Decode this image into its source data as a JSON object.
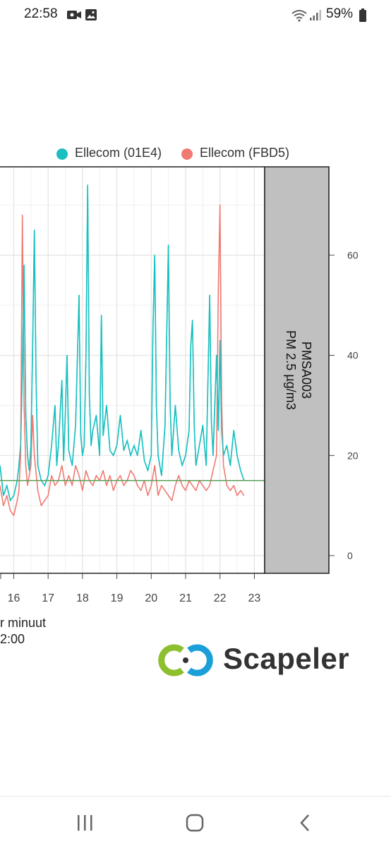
{
  "status_bar": {
    "time": "22:58",
    "battery_percent": "59%",
    "icons": [
      "screen-record-icon",
      "image-icon",
      "wifi-icon",
      "signal-icon",
      "battery-icon"
    ]
  },
  "chart_data": {
    "type": "line",
    "title": "",
    "facet_label": [
      "PMSA003",
      "PM 2.5 µg/m3"
    ],
    "xlabel": [
      "r minuut",
      "2:00"
    ],
    "ylabel": "",
    "x_tick_labels": [
      "16",
      "17",
      "18",
      "19",
      "20",
      "21",
      "22",
      "23"
    ],
    "y_tick_labels": [
      "0",
      "20",
      "40",
      "60"
    ],
    "ylim": [
      0,
      75
    ],
    "xlim": [
      15.6,
      23.3
    ],
    "grid": true,
    "legend_position": "top",
    "reference_line": {
      "value": 15,
      "color": "#5aa05a"
    },
    "colors": {
      "ellecom_01e4": "#19bfc0",
      "ellecom_fbd5": "#f07a72"
    },
    "series": [
      {
        "name": "Ellecom (01E4)",
        "color": "#19bfc0",
        "points": [
          [
            15.6,
            18
          ],
          [
            15.7,
            12
          ],
          [
            15.8,
            14
          ],
          [
            15.9,
            11
          ],
          [
            16.0,
            12
          ],
          [
            16.1,
            15
          ],
          [
            16.15,
            18
          ],
          [
            16.2,
            22
          ],
          [
            16.25,
            37
          ],
          [
            16.3,
            58
          ],
          [
            16.35,
            28
          ],
          [
            16.4,
            20
          ],
          [
            16.45,
            17
          ],
          [
            16.5,
            22
          ],
          [
            16.55,
            42
          ],
          [
            16.6,
            65
          ],
          [
            16.65,
            35
          ],
          [
            16.7,
            18
          ],
          [
            16.8,
            15
          ],
          [
            16.9,
            14
          ],
          [
            17.0,
            16
          ],
          [
            17.1,
            22
          ],
          [
            17.2,
            30
          ],
          [
            17.25,
            18
          ],
          [
            17.3,
            22
          ],
          [
            17.4,
            35
          ],
          [
            17.45,
            19
          ],
          [
            17.5,
            28
          ],
          [
            17.55,
            40
          ],
          [
            17.6,
            21
          ],
          [
            17.7,
            18
          ],
          [
            17.8,
            26
          ],
          [
            17.9,
            52
          ],
          [
            17.95,
            24
          ],
          [
            18.0,
            20
          ],
          [
            18.05,
            22
          ],
          [
            18.1,
            40
          ],
          [
            18.15,
            74
          ],
          [
            18.2,
            32
          ],
          [
            18.25,
            22
          ],
          [
            18.3,
            25
          ],
          [
            18.4,
            28
          ],
          [
            18.5,
            20
          ],
          [
            18.55,
            48
          ],
          [
            18.6,
            24
          ],
          [
            18.7,
            30
          ],
          [
            18.8,
            21
          ],
          [
            18.9,
            20
          ],
          [
            19.0,
            22
          ],
          [
            19.1,
            28
          ],
          [
            19.2,
            21
          ],
          [
            19.3,
            23
          ],
          [
            19.4,
            20
          ],
          [
            19.5,
            22
          ],
          [
            19.6,
            20
          ],
          [
            19.7,
            25
          ],
          [
            19.8,
            19
          ],
          [
            19.9,
            17
          ],
          [
            20.0,
            20
          ],
          [
            20.05,
            45
          ],
          [
            20.1,
            60
          ],
          [
            20.15,
            30
          ],
          [
            20.2,
            20
          ],
          [
            20.3,
            16
          ],
          [
            20.4,
            26
          ],
          [
            20.5,
            62
          ],
          [
            20.55,
            30
          ],
          [
            20.6,
            20
          ],
          [
            20.7,
            30
          ],
          [
            20.8,
            21
          ],
          [
            20.9,
            18
          ],
          [
            21.0,
            20
          ],
          [
            21.1,
            25
          ],
          [
            21.15,
            42
          ],
          [
            21.2,
            47
          ],
          [
            21.25,
            26
          ],
          [
            21.3,
            18
          ],
          [
            21.4,
            22
          ],
          [
            21.5,
            26
          ],
          [
            21.6,
            18
          ],
          [
            21.7,
            52
          ],
          [
            21.75,
            27
          ],
          [
            21.8,
            20
          ],
          [
            21.9,
            40
          ],
          [
            21.95,
            25
          ],
          [
            22.0,
            43
          ],
          [
            22.05,
            25
          ],
          [
            22.1,
            20
          ],
          [
            22.2,
            22
          ],
          [
            22.3,
            18
          ],
          [
            22.4,
            25
          ],
          [
            22.5,
            20
          ],
          [
            22.6,
            17
          ],
          [
            22.7,
            15
          ]
        ]
      },
      {
        "name": "Ellecom (FBD5)",
        "color": "#f07a72",
        "points": [
          [
            15.6,
            14
          ],
          [
            15.7,
            10
          ],
          [
            15.8,
            12
          ],
          [
            15.9,
            9
          ],
          [
            16.0,
            8
          ],
          [
            16.1,
            11
          ],
          [
            16.15,
            13
          ],
          [
            16.2,
            20
          ],
          [
            16.25,
            68
          ],
          [
            16.3,
            30
          ],
          [
            16.35,
            18
          ],
          [
            16.4,
            14
          ],
          [
            16.5,
            18
          ],
          [
            16.55,
            28
          ],
          [
            16.6,
            20
          ],
          [
            16.7,
            13
          ],
          [
            16.8,
            10
          ],
          [
            16.9,
            11
          ],
          [
            17.0,
            12
          ],
          [
            17.1,
            16
          ],
          [
            17.2,
            14
          ],
          [
            17.3,
            15
          ],
          [
            17.4,
            18
          ],
          [
            17.5,
            14
          ],
          [
            17.6,
            16
          ],
          [
            17.7,
            14
          ],
          [
            17.8,
            18
          ],
          [
            17.9,
            16
          ],
          [
            18.0,
            13
          ],
          [
            18.1,
            17
          ],
          [
            18.2,
            15
          ],
          [
            18.3,
            14
          ],
          [
            18.4,
            16
          ],
          [
            18.5,
            15
          ],
          [
            18.6,
            17
          ],
          [
            18.7,
            14
          ],
          [
            18.8,
            16
          ],
          [
            18.9,
            13
          ],
          [
            19.0,
            15
          ],
          [
            19.1,
            16
          ],
          [
            19.2,
            14
          ],
          [
            19.3,
            15
          ],
          [
            19.4,
            17
          ],
          [
            19.5,
            16
          ],
          [
            19.6,
            14
          ],
          [
            19.7,
            13
          ],
          [
            19.8,
            15
          ],
          [
            19.9,
            12
          ],
          [
            20.0,
            14
          ],
          [
            20.1,
            18
          ],
          [
            20.2,
            12
          ],
          [
            20.3,
            14
          ],
          [
            20.4,
            13
          ],
          [
            20.5,
            12
          ],
          [
            20.6,
            11
          ],
          [
            20.7,
            14
          ],
          [
            20.8,
            16
          ],
          [
            20.9,
            14
          ],
          [
            21.0,
            13
          ],
          [
            21.1,
            15
          ],
          [
            21.2,
            14
          ],
          [
            21.3,
            13
          ],
          [
            21.4,
            15
          ],
          [
            21.5,
            14
          ],
          [
            21.6,
            13
          ],
          [
            21.7,
            14
          ],
          [
            21.8,
            17
          ],
          [
            21.9,
            20
          ],
          [
            21.95,
            53
          ],
          [
            22.0,
            70
          ],
          [
            22.05,
            30
          ],
          [
            22.1,
            18
          ],
          [
            22.2,
            14
          ],
          [
            22.3,
            13
          ],
          [
            22.4,
            14
          ],
          [
            22.5,
            12
          ],
          [
            22.6,
            13
          ],
          [
            22.7,
            12
          ]
        ]
      }
    ]
  },
  "logo": {
    "text": "Scapeler"
  },
  "nav_bar": {
    "buttons": [
      "recent-apps-button",
      "home-button",
      "back-button"
    ]
  }
}
